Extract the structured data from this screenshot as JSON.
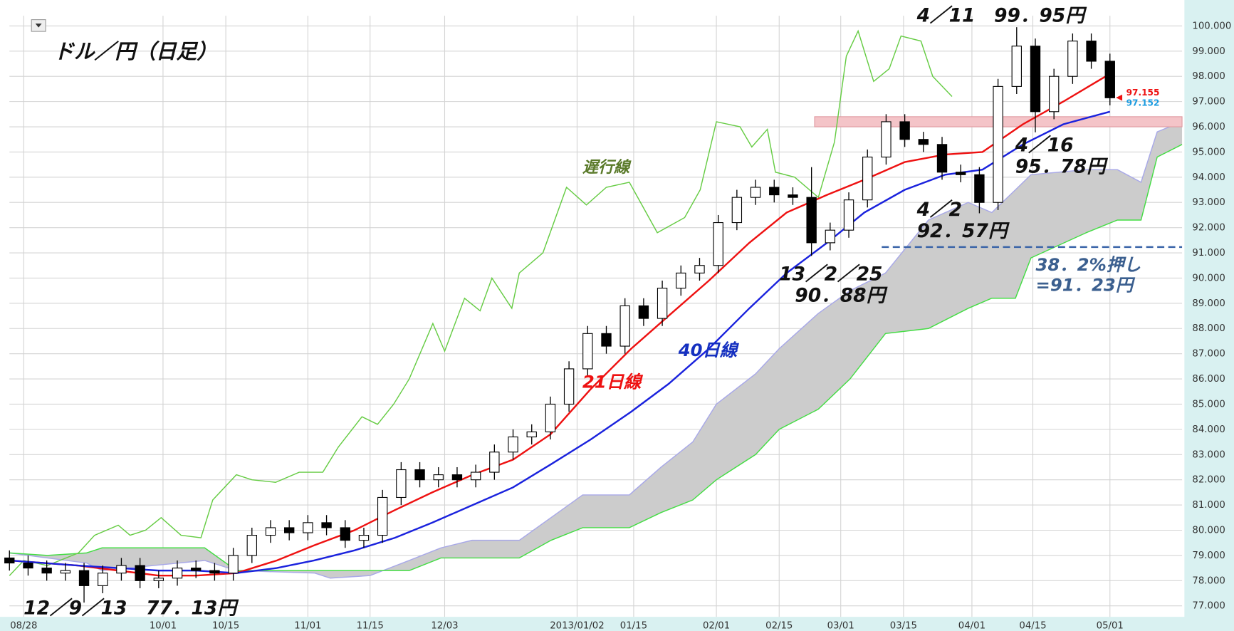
{
  "chart_data": {
    "type": "candlestick",
    "title": "ドル／円（日足）",
    "grid": true,
    "xlim": [
      0,
      188.6
    ],
    "xticks": [
      {
        "value": 2.3,
        "label": "08/28"
      },
      {
        "value": 24.7,
        "label": "10/01"
      },
      {
        "value": 34.8,
        "label": "10/15"
      },
      {
        "value": 48,
        "label": "11/01"
      },
      {
        "value": 58,
        "label": "11/15"
      },
      {
        "value": 70,
        "label": "12/03"
      },
      {
        "value": 91.3,
        "label": "2013/01/02"
      },
      {
        "value": 100.4,
        "label": "01/15"
      },
      {
        "value": 113.7,
        "label": "02/01"
      },
      {
        "value": 123.8,
        "label": "02/15"
      },
      {
        "value": 133.7,
        "label": "03/01"
      },
      {
        "value": 143.8,
        "label": "03/15"
      },
      {
        "value": 154.8,
        "label": "04/01"
      },
      {
        "value": 164.6,
        "label": "04/15"
      },
      {
        "value": 177,
        "label": "05/01"
      }
    ],
    "ylim": [
      76.564,
      100.405
    ],
    "yticks": [
      {
        "value": 77,
        "label": "77.000"
      },
      {
        "value": 78,
        "label": "78.000"
      },
      {
        "value": 79,
        "label": "79.000"
      },
      {
        "value": 80,
        "label": "80.000"
      },
      {
        "value": 81,
        "label": "81.000"
      },
      {
        "value": 82,
        "label": "82.000"
      },
      {
        "value": 83,
        "label": "83.000"
      },
      {
        "value": 84,
        "label": "84.000"
      },
      {
        "value": 85,
        "label": "85.000"
      },
      {
        "value": 86,
        "label": "86.000"
      },
      {
        "value": 87,
        "label": "87.000"
      },
      {
        "value": 88,
        "label": "88.000"
      },
      {
        "value": 89,
        "label": "89.000"
      },
      {
        "value": 90,
        "label": "90.000"
      },
      {
        "value": 91,
        "label": "91.000"
      },
      {
        "value": 92,
        "label": "92.000"
      },
      {
        "value": 93,
        "label": "93.000"
      },
      {
        "value": 94,
        "label": "94.000"
      },
      {
        "value": 95,
        "label": "95.000"
      },
      {
        "value": 96,
        "label": "96.000"
      },
      {
        "value": 97,
        "label": "97.000"
      },
      {
        "value": 98,
        "label": "98.000"
      },
      {
        "value": 99,
        "label": "99.000"
      },
      {
        "value": 100,
        "label": "100.000"
      }
    ],
    "candles": {
      "up_color": "#ffffff",
      "down_color": "#000000",
      "x": [
        0,
        3,
        6,
        9,
        12,
        15,
        18,
        21,
        24,
        27,
        30,
        33,
        36,
        39,
        42,
        45,
        48,
        51,
        54,
        57,
        60,
        63,
        66,
        69,
        72,
        75,
        78,
        81,
        84,
        87,
        90,
        93,
        96,
        99,
        102,
        105,
        108,
        111,
        114,
        117,
        120,
        123,
        126,
        129,
        132,
        135,
        138,
        141,
        144,
        147,
        150,
        153,
        156,
        159,
        162,
        165,
        168,
        171,
        174,
        177
      ],
      "open": [
        78.9,
        78.7,
        78.5,
        78.3,
        78.4,
        77.8,
        78.3,
        78.6,
        78.0,
        78.1,
        78.5,
        78.4,
        78.3,
        79.0,
        79.8,
        80.1,
        79.9,
        80.3,
        80.1,
        79.6,
        79.8,
        81.3,
        82.4,
        82.0,
        82.2,
        82.0,
        82.3,
        83.1,
        83.7,
        83.9,
        85.0,
        86.4,
        87.8,
        87.3,
        88.9,
        88.4,
        89.6,
        90.2,
        90.5,
        92.2,
        93.2,
        93.6,
        93.3,
        93.2,
        91.4,
        91.9,
        93.1,
        94.8,
        96.2,
        95.5,
        95.3,
        94.2,
        94.1,
        93.0,
        97.6,
        99.2,
        96.6,
        98.0,
        99.4,
        98.6
      ],
      "high": [
        79.2,
        79.0,
        78.8,
        78.7,
        78.7,
        78.6,
        78.9,
        78.9,
        78.4,
        78.8,
        78.8,
        78.7,
        79.3,
        80.1,
        80.4,
        80.4,
        80.6,
        80.6,
        80.4,
        80.1,
        81.6,
        82.7,
        82.7,
        82.5,
        82.5,
        82.6,
        83.4,
        84.0,
        84.2,
        85.3,
        86.7,
        88.1,
        88.1,
        89.2,
        89.2,
        89.9,
        90.5,
        90.8,
        92.5,
        93.5,
        93.9,
        93.9,
        93.6,
        94.4,
        92.2,
        93.4,
        95.1,
        96.5,
        96.5,
        95.8,
        95.6,
        94.5,
        94.4,
        97.9,
        99.95,
        99.5,
        98.3,
        99.7,
        99.7,
        98.9
      ],
      "low": [
        78.4,
        78.2,
        78.0,
        78.0,
        77.13,
        77.5,
        78.0,
        77.7,
        77.7,
        77.8,
        78.1,
        78.0,
        78.0,
        78.7,
        79.5,
        79.6,
        79.6,
        79.8,
        79.3,
        79.3,
        79.5,
        81.0,
        81.7,
        81.7,
        81.7,
        81.7,
        82.0,
        82.8,
        83.4,
        83.6,
        84.7,
        86.1,
        87.0,
        87.0,
        88.1,
        88.1,
        89.3,
        89.9,
        90.2,
        91.9,
        92.9,
        93.0,
        92.9,
        90.88,
        91.1,
        91.6,
        92.8,
        94.5,
        95.2,
        95.0,
        93.9,
        93.8,
        92.57,
        92.7,
        97.3,
        95.78,
        96.3,
        97.7,
        98.3,
        96.85
      ],
      "close": [
        78.7,
        78.5,
        78.3,
        78.4,
        77.8,
        78.3,
        78.6,
        78.0,
        78.1,
        78.5,
        78.4,
        78.3,
        79.0,
        79.8,
        80.1,
        79.9,
        80.3,
        80.1,
        79.6,
        79.8,
        81.3,
        82.4,
        82.0,
        82.2,
        82.0,
        82.3,
        83.1,
        83.7,
        83.9,
        85.0,
        86.4,
        87.8,
        87.3,
        88.9,
        88.4,
        89.6,
        90.2,
        90.5,
        92.2,
        93.2,
        93.6,
        93.3,
        93.2,
        91.4,
        91.9,
        93.1,
        94.8,
        96.2,
        95.5,
        95.3,
        94.2,
        94.1,
        93.0,
        97.6,
        99.2,
        96.6,
        98.0,
        99.4,
        98.6,
        97.15
      ]
    },
    "cloud": {
      "fill": "#cccccc",
      "a_color": "#a8a8e8",
      "b_color": "#44dd44",
      "x": [
        0,
        6.1,
        12.4,
        14.9,
        31.4,
        36.5,
        49.1,
        51.6,
        58,
        64.3,
        69.4,
        74.4,
        82,
        87.1,
        92.2,
        99.7,
        104.8,
        109.9,
        113.7,
        120,
        123.8,
        130.1,
        135.2,
        140.9,
        147.8,
        154.2,
        158,
        161.8,
        164.3,
        173.2,
        178.2,
        182,
        184.6,
        188.6
      ],
      "span_a": [
        79.1,
        78.9,
        78.7,
        78.4,
        78.8,
        78.4,
        78.3,
        78.1,
        78.2,
        78.8,
        79.3,
        79.6,
        79.6,
        80.5,
        81.4,
        81.4,
        82.5,
        83.5,
        85.0,
        86.2,
        87.2,
        88.6,
        89.5,
        90.2,
        92.3,
        93.0,
        92.6,
        93.5,
        94.1,
        94.3,
        94.3,
        93.8,
        95.8,
        96.2
      ],
      "span_b": [
        79.1,
        79.0,
        79.1,
        79.3,
        79.3,
        78.4,
        78.4,
        78.4,
        78.4,
        78.4,
        78.9,
        78.9,
        78.9,
        79.6,
        80.1,
        80.1,
        80.7,
        81.2,
        82.0,
        83.0,
        84.0,
        84.8,
        86.0,
        87.8,
        88.0,
        88.8,
        89.2,
        89.2,
        90.8,
        91.8,
        92.3,
        92.3,
        94.8,
        95.3
      ]
    },
    "chikou": {
      "color": "#66cc44",
      "x": [
        0,
        2.3,
        6.1,
        11.1,
        13.7,
        17.5,
        19.4,
        21.9,
        24.4,
        27.6,
        30.8,
        32.7,
        36.5,
        39,
        42.8,
        46.6,
        50.4,
        52.9,
        56.7,
        59.2,
        61.8,
        64.3,
        68.1,
        70,
        73.2,
        75.7,
        77.6,
        80.8,
        82,
        85.8,
        89.6,
        92.8,
        96,
        99.7,
        104.2,
        108.6,
        111.1,
        113.7,
        117.5,
        119.4,
        121.9,
        123.2,
        126.3,
        130.1,
        132.7,
        134.6,
        136.5,
        139,
        141.5,
        143.4,
        146.6,
        148.5,
        151.6
      ],
      "values": [
        78.2,
        78.8,
        78.6,
        79.1,
        79.8,
        80.2,
        79.8,
        80.0,
        80.5,
        79.8,
        79.7,
        81.2,
        82.2,
        82.0,
        81.9,
        82.3,
        82.3,
        83.3,
        84.5,
        84.2,
        85.0,
        86.0,
        88.2,
        87.1,
        89.2,
        88.7,
        90.0,
        88.8,
        90.2,
        91.0,
        93.6,
        92.9,
        93.6,
        93.8,
        91.8,
        92.4,
        93.5,
        96.2,
        96.0,
        95.2,
        95.9,
        94.2,
        94.0,
        93.2,
        95.4,
        98.8,
        99.8,
        97.8,
        98.3,
        99.6,
        99.4,
        98.0,
        97.2
      ]
    },
    "ma21": {
      "color": "#ee1111",
      "x": [
        0,
        11,
        17.5,
        24,
        30,
        36.5,
        43,
        49,
        55.5,
        62,
        68,
        74.5,
        81,
        87,
        93.5,
        100,
        106,
        112.5,
        119,
        125,
        131.5,
        137.5,
        144,
        150.5,
        156.5,
        163,
        169.5,
        177
      ],
      "values": [
        78.8,
        78.6,
        78.4,
        78.2,
        78.2,
        78.3,
        78.8,
        79.4,
        80.0,
        80.8,
        81.5,
        82.2,
        82.8,
        83.8,
        85.6,
        87.2,
        88.5,
        89.9,
        91.4,
        92.6,
        93.3,
        93.9,
        94.6,
        94.9,
        95.0,
        96.1,
        97.0,
        98.1
      ]
    },
    "ma40": {
      "color": "#1a22dd",
      "x": [
        0,
        11,
        17.5,
        24,
        30,
        36.5,
        43,
        49,
        55.5,
        62,
        68,
        74.5,
        81,
        87,
        93.5,
        100,
        106,
        112.5,
        119,
        125,
        131.5,
        137.5,
        144,
        150.5,
        156.5,
        163,
        169.5,
        177
      ],
      "values": [
        78.8,
        78.6,
        78.5,
        78.4,
        78.4,
        78.3,
        78.5,
        78.8,
        79.2,
        79.7,
        80.3,
        81.0,
        81.7,
        82.6,
        83.6,
        84.7,
        85.8,
        87.2,
        88.8,
        90.2,
        91.4,
        92.6,
        93.5,
        94.1,
        94.3,
        95.3,
        96.1,
        96.6
      ]
    },
    "resistance": {
      "low": 96.0,
      "high": 96.4,
      "x": [
        129.5,
        188.6
      ],
      "color": "#f4c4c8"
    },
    "retracement": {
      "value": 91.23,
      "x": [
        140.3,
        188.6
      ],
      "color": "#3a64a8"
    },
    "last_prices": [
      {
        "value": 97.155,
        "color": "#ee1111"
      },
      {
        "value": 97.152,
        "color": "#1a9be0"
      }
    ],
    "annotations": [
      {
        "text": "遅行線",
        "color": "#5a7a2a"
      },
      {
        "text": "21日線",
        "color": "#ee1111"
      },
      {
        "text": "40日線",
        "color": "#1530c0"
      },
      {
        "text": "4／11　99．95円",
        "color": "#111111"
      },
      {
        "text": "4／16",
        "color": "#111111"
      },
      {
        "text": "95．78円",
        "color": "#111111"
      },
      {
        "text": "4／2",
        "color": "#111111"
      },
      {
        "text": "92．57円",
        "color": "#111111"
      },
      {
        "text": "13／2／25",
        "color": "#111111"
      },
      {
        "text": "90．88円",
        "color": "#111111"
      },
      {
        "text": "12／9／13　77．13円",
        "color": "#111111"
      },
      {
        "text": "38．2%押し",
        "color": "#3b5f8f"
      },
      {
        "text": "=91．23円",
        "color": "#3b5f8f"
      }
    ]
  }
}
